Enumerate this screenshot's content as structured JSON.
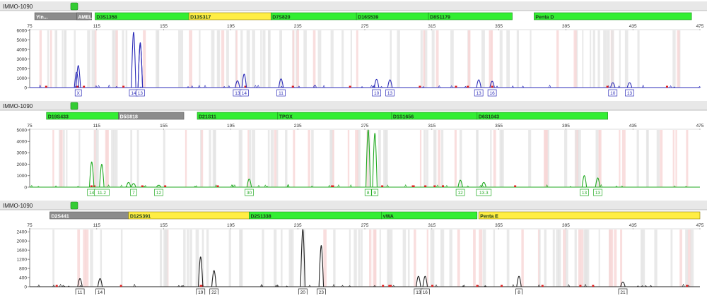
{
  "panels": [
    {
      "sample": "IMMO-1090",
      "status_color": "#33cc33",
      "dye_color": "#2b2bb8",
      "ymax": 6000,
      "yticks": [
        0,
        1000,
        2000,
        3000,
        4000,
        5000,
        6000
      ],
      "markers": [
        {
          "label": "Yin...",
          "start": 78,
          "end": 110,
          "color": "#8c8c8c"
        },
        {
          "label": "AMEL",
          "start": 103,
          "end": 112,
          "color": "#8c8c8c"
        },
        {
          "label": "D3S1358",
          "start": 114,
          "end": 170,
          "color": "#33ee33"
        },
        {
          "label": "D13S317",
          "start": 170,
          "end": 219,
          "color": "#ffee44"
        },
        {
          "label": "D7S820",
          "start": 219,
          "end": 270,
          "color": "#33ee33"
        },
        {
          "label": "D16S539",
          "start": 270,
          "end": 313,
          "color": "#33ee33"
        },
        {
          "label": "D8S1179",
          "start": 313,
          "end": 363,
          "color": "#33ee33"
        },
        {
          "label": "Penta D",
          "start": 376,
          "end": 470,
          "color": "#33ee33"
        }
      ],
      "peaks": [
        {
          "bp": 103,
          "h": 1600
        },
        {
          "bp": 104,
          "h": 2300
        },
        {
          "bp": 137,
          "h": 5800
        },
        {
          "bp": 141,
          "h": 4700
        },
        {
          "bp": 141,
          "h": 4600
        },
        {
          "bp": 199,
          "h": 700
        },
        {
          "bp": 203,
          "h": 1400
        },
        {
          "bp": 225,
          "h": 900
        },
        {
          "bp": 282,
          "h": 850
        },
        {
          "bp": 290,
          "h": 800
        },
        {
          "bp": 343,
          "h": 800
        },
        {
          "bp": 351,
          "h": 650
        },
        {
          "bp": 423,
          "h": 500
        },
        {
          "bp": 433,
          "h": 500
        }
      ],
      "labels": [
        {
          "bp": 104,
          "text": "X"
        },
        {
          "bp": 137,
          "text": "14"
        },
        {
          "bp": 141,
          "text": "13"
        },
        {
          "bp": 199,
          "text": "13"
        },
        {
          "bp": 203,
          "text": "14"
        },
        {
          "bp": 225,
          "text": "11"
        },
        {
          "bp": 282,
          "text": "10"
        },
        {
          "bp": 290,
          "text": "13"
        },
        {
          "bp": 343,
          "text": "13"
        },
        {
          "bp": 351,
          "text": "16"
        },
        {
          "bp": 423,
          "text": "10"
        },
        {
          "bp": 433,
          "text": "13"
        }
      ]
    },
    {
      "sample": "IMMO-1090",
      "status_color": "#33cc33",
      "dye_color": "#22aa22",
      "ymax": 5000,
      "yticks": [
        0,
        1000,
        2000,
        3000,
        4000,
        5000
      ],
      "markers": [
        {
          "label": "D19S433",
          "start": 85,
          "end": 128,
          "color": "#33ee33"
        },
        {
          "label": "D5S818",
          "start": 128,
          "end": 167,
          "color": "#8c8c8c"
        },
        {
          "label": "D21S11",
          "start": 175,
          "end": 223,
          "color": "#33ee33"
        },
        {
          "label": "TPOX",
          "start": 223,
          "end": 291,
          "color": "#33ee33"
        },
        {
          "label": "D1S1656",
          "start": 291,
          "end": 342,
          "color": "#33ee33"
        },
        {
          "label": "D6S1043",
          "start": 342,
          "end": 420,
          "color": "#33ee33"
        }
      ],
      "peaks": [
        {
          "bp": 112,
          "h": 2200
        },
        {
          "bp": 118,
          "h": 2000
        },
        {
          "bp": 134,
          "h": 400
        },
        {
          "bp": 137,
          "h": 300
        },
        {
          "bp": 152,
          "h": 150
        },
        {
          "bp": 206,
          "h": 700
        },
        {
          "bp": 277,
          "h": 5000
        },
        {
          "bp": 281,
          "h": 4700
        },
        {
          "bp": 332,
          "h": 600
        },
        {
          "bp": 346,
          "h": 400
        },
        {
          "bp": 406,
          "h": 1000
        },
        {
          "bp": 414,
          "h": 800
        }
      ],
      "labels": [
        {
          "bp": 112,
          "text": "14"
        },
        {
          "bp": 118,
          "text": "11.2"
        },
        {
          "bp": 137,
          "text": "7"
        },
        {
          "bp": 152,
          "text": "12"
        },
        {
          "bp": 206,
          "text": "30"
        },
        {
          "bp": 277,
          "text": "8"
        },
        {
          "bp": 281,
          "text": "9"
        },
        {
          "bp": 332,
          "text": "12"
        },
        {
          "bp": 346,
          "text": "13.3"
        },
        {
          "bp": 406,
          "text": "13"
        },
        {
          "bp": 414,
          "text": "13"
        }
      ]
    },
    {
      "sample": "IMMO-1090",
      "status_color": "#33cc33",
      "dye_color": "#222222",
      "ymax": 2500,
      "yticks": [
        0,
        400,
        800,
        1200,
        1600,
        2000,
        2400
      ],
      "markers": [
        {
          "label": "D2S441",
          "start": 87,
          "end": 134,
          "color": "#8c8c8c"
        },
        {
          "label": "D12S391",
          "start": 134,
          "end": 206,
          "color": "#ffee44"
        },
        {
          "label": "D2S1338",
          "start": 206,
          "end": 285,
          "color": "#33ee33"
        },
        {
          "label": "vWA",
          "start": 285,
          "end": 342,
          "color": "#33ee33"
        },
        {
          "label": "Penta E",
          "start": 343,
          "end": 475,
          "color": "#ffee44"
        }
      ],
      "peaks": [
        {
          "bp": 105,
          "h": 350
        },
        {
          "bp": 117,
          "h": 350
        },
        {
          "bp": 177,
          "h": 1300
        },
        {
          "bp": 185,
          "h": 700
        },
        {
          "bp": 238,
          "h": 2500
        },
        {
          "bp": 249,
          "h": 1800
        },
        {
          "bp": 307,
          "h": 450
        },
        {
          "bp": 311,
          "h": 450
        },
        {
          "bp": 367,
          "h": 450
        },
        {
          "bp": 429,
          "h": 200
        }
      ],
      "labels": [
        {
          "bp": 105,
          "text": "11"
        },
        {
          "bp": 117,
          "text": "14"
        },
        {
          "bp": 177,
          "text": "19"
        },
        {
          "bp": 185,
          "text": "22"
        },
        {
          "bp": 238,
          "text": "20"
        },
        {
          "bp": 249,
          "text": "23"
        },
        {
          "bp": 307,
          "text": "13"
        },
        {
          "bp": 311,
          "text": "16"
        },
        {
          "bp": 367,
          "text": "8"
        },
        {
          "bp": 429,
          "text": "21"
        }
      ]
    }
  ],
  "x_ticks": [
    75,
    115,
    155,
    195,
    235,
    275,
    315,
    355,
    395,
    435,
    475
  ],
  "chart_data": [
    {
      "type": "line",
      "title": "",
      "xlim": [
        75,
        475
      ],
      "ylim": [
        0,
        6000
      ],
      "categories": [
        "AMEL",
        "D3S1358",
        "D13S317",
        "D7S820",
        "D16S539",
        "D8S1179",
        "Penta D"
      ],
      "series": [
        {
          "x": [
            103,
            104,
            137,
            141,
            199,
            203,
            225,
            282,
            290,
            343,
            351,
            423,
            433
          ],
          "values": [
            1600,
            2300,
            5800,
            4700,
            700,
            1400,
            900,
            850,
            800,
            800,
            650,
            500,
            500
          ]
        }
      ]
    },
    {
      "type": "line",
      "title": "",
      "xlim": [
        75,
        475
      ],
      "ylim": [
        0,
        5000
      ],
      "categories": [
        "D19S433",
        "D5S818",
        "D21S11",
        "TPOX",
        "D1S1656",
        "D6S1043"
      ],
      "series": [
        {
          "x": [
            112,
            118,
            137,
            152,
            206,
            277,
            281,
            332,
            346,
            406,
            414
          ],
          "values": [
            2200,
            2000,
            300,
            150,
            700,
            5000,
            4700,
            600,
            400,
            1000,
            800
          ]
        }
      ]
    },
    {
      "type": "line",
      "title": "",
      "xlim": [
        75,
        475
      ],
      "ylim": [
        0,
        2500
      ],
      "categories": [
        "D2S441",
        "D12S391",
        "D2S1338",
        "vWA",
        "Penta E"
      ],
      "series": [
        {
          "x": [
            105,
            117,
            177,
            185,
            238,
            249,
            307,
            311,
            367,
            429
          ],
          "values": [
            350,
            350,
            1300,
            700,
            2500,
            1800,
            450,
            450,
            450,
            200
          ]
        }
      ]
    }
  ]
}
